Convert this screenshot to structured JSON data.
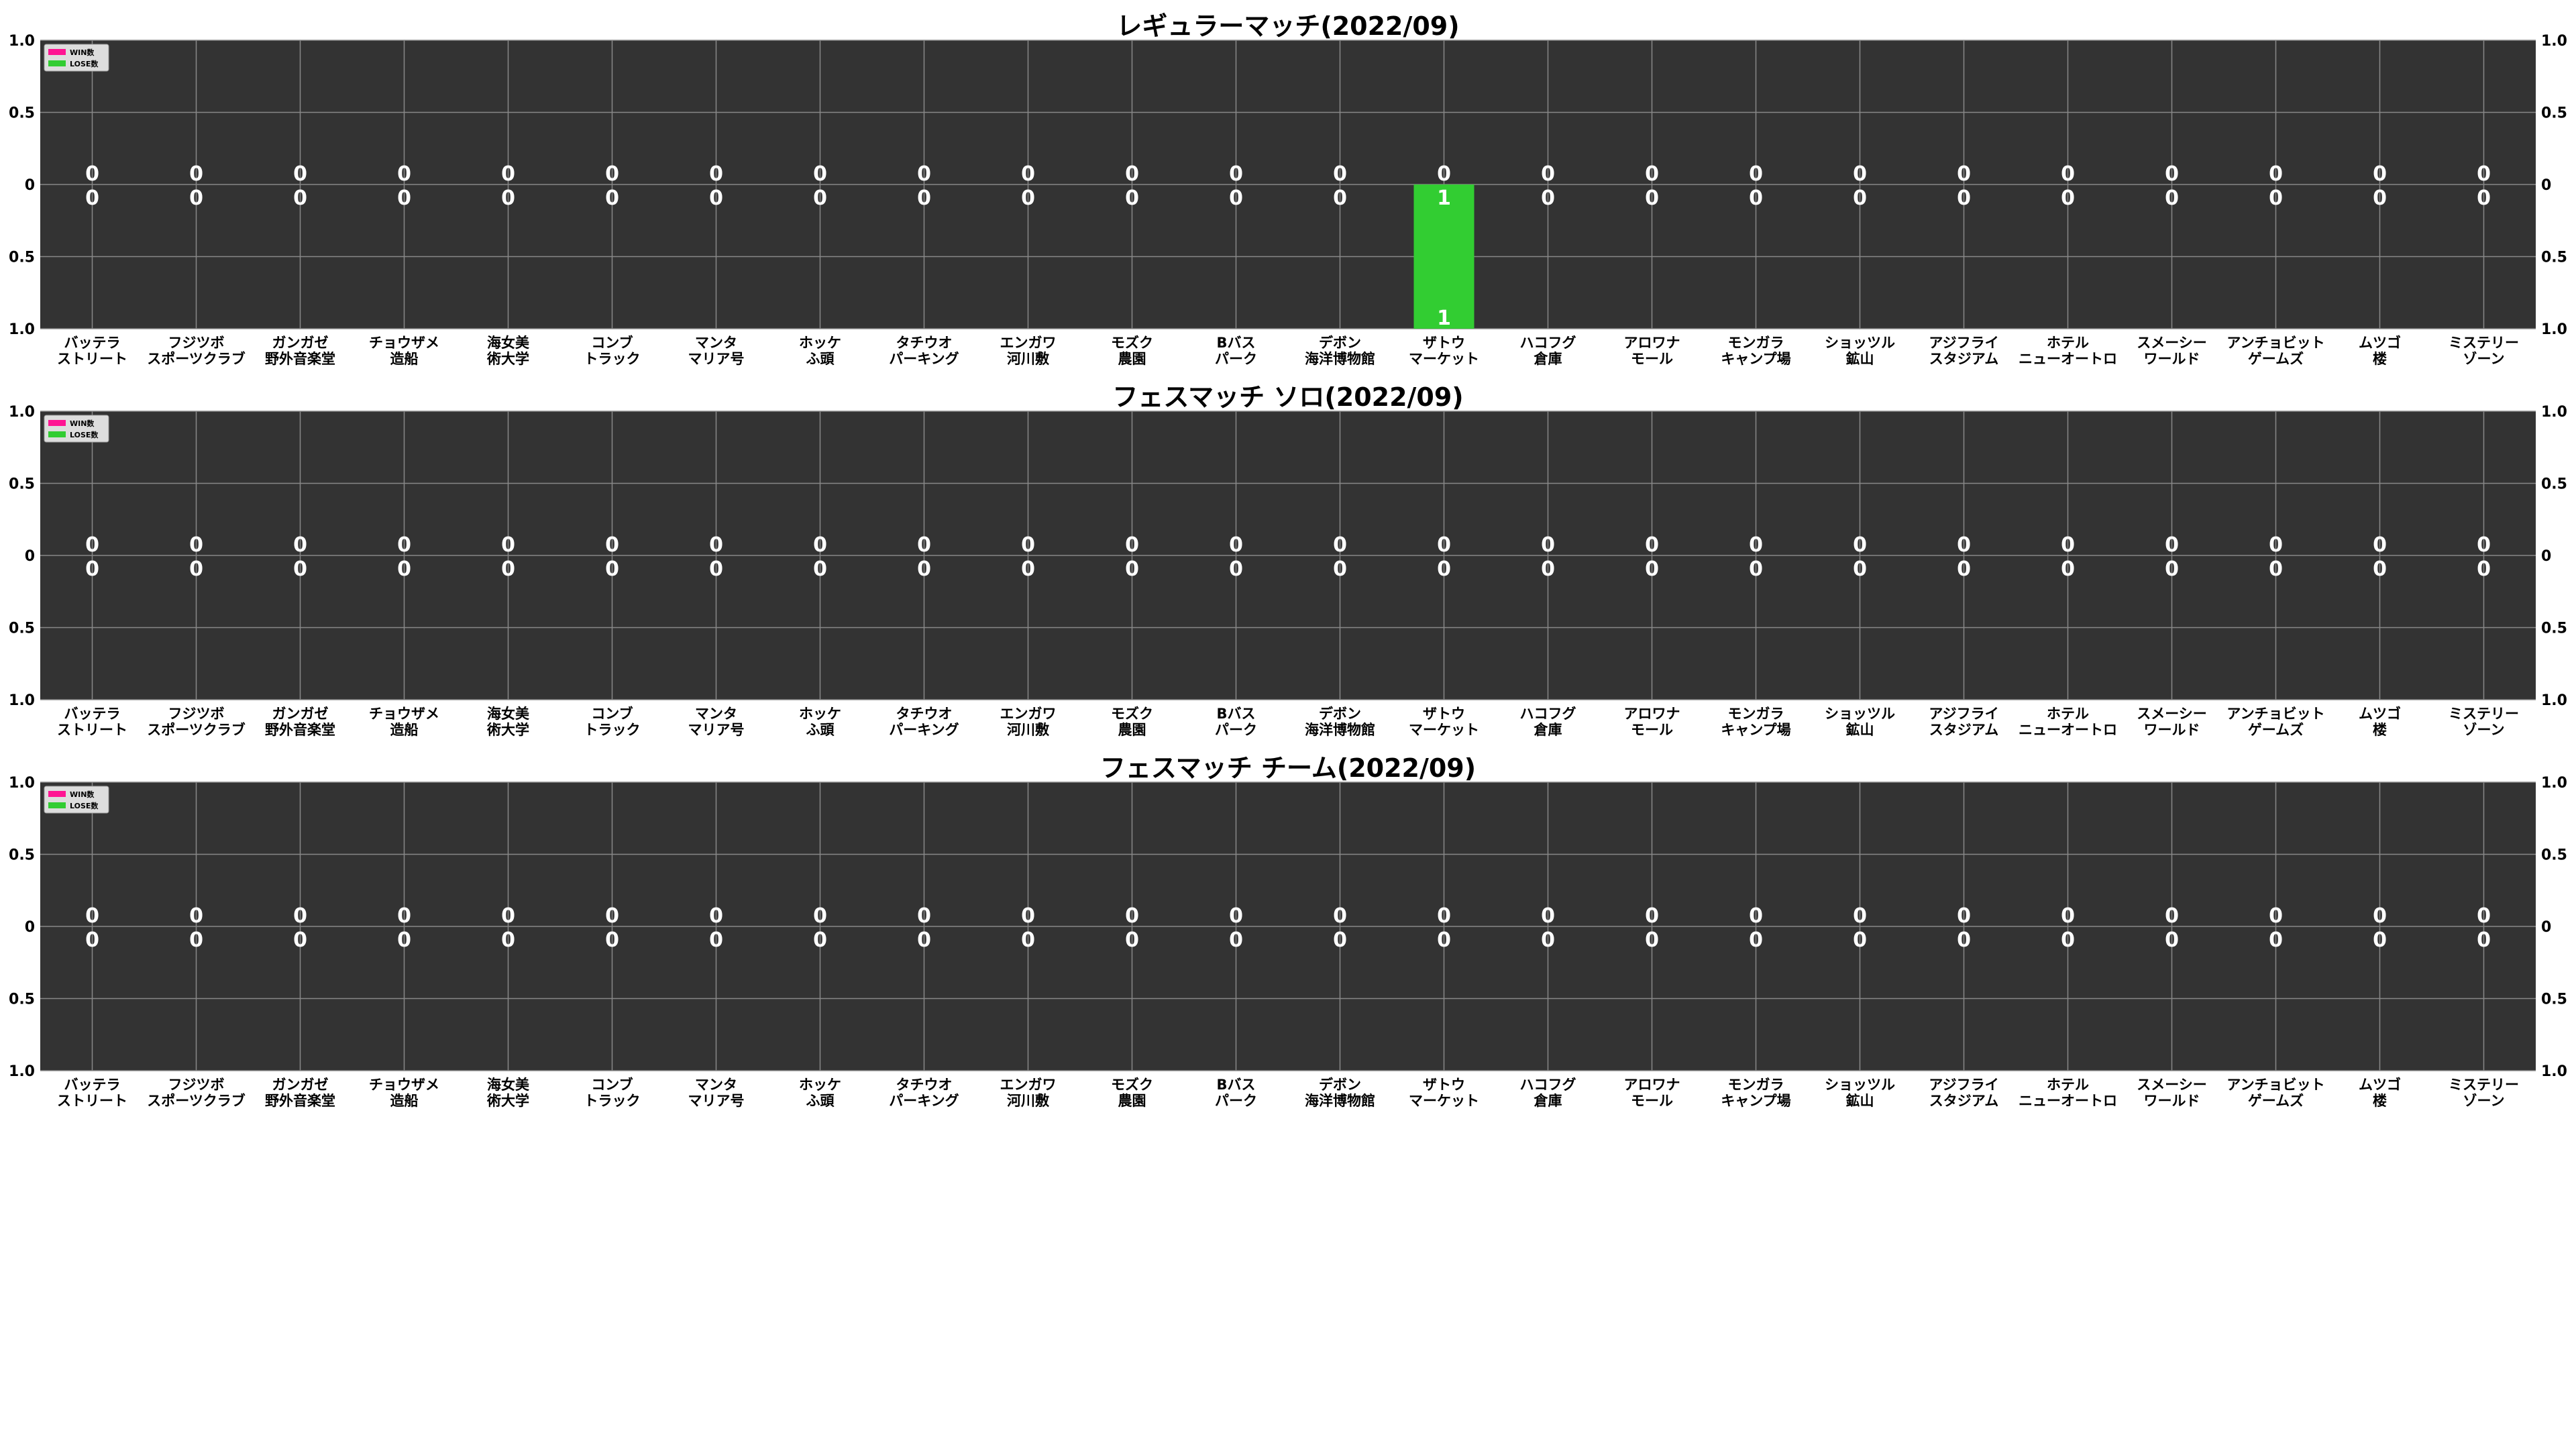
{
  "stages": [
    [
      "バッテラ",
      "ストリート"
    ],
    [
      "フジツボ",
      "スポーツクラブ"
    ],
    [
      "ガンガゼ",
      "野外音楽堂"
    ],
    [
      "チョウザメ",
      "造船"
    ],
    [
      "海女美",
      "術大学"
    ],
    [
      "コンブ",
      "トラック"
    ],
    [
      "マンタ",
      "マリア号"
    ],
    [
      "ホッケ",
      "ふ頭"
    ],
    [
      "タチウオ",
      "パーキング"
    ],
    [
      "エンガワ",
      "河川敷"
    ],
    [
      "モズク",
      "農園"
    ],
    [
      "Bバス",
      "パーク"
    ],
    [
      "デボン",
      "海洋博物館"
    ],
    [
      "ザトウ",
      "マーケット"
    ],
    [
      "ハコフグ",
      "倉庫"
    ],
    [
      "アロワナ",
      "モール"
    ],
    [
      "モンガラ",
      "キャンプ場"
    ],
    [
      "ショッツル",
      "鉱山"
    ],
    [
      "アジフライ",
      "スタジアム"
    ],
    [
      "ホテル",
      "ニューオートロ"
    ],
    [
      "スメーシー",
      "ワールド"
    ],
    [
      "アンチョビット",
      "ゲームズ"
    ],
    [
      "ムツゴ",
      "楼"
    ],
    [
      "ミステリー",
      "ゾーン"
    ]
  ],
  "colors": {
    "plot_bg": "#333333",
    "win": "#ff1493",
    "lose": "#32cd32",
    "grid": "#888888",
    "label": "#ffffff",
    "text": "#000000"
  },
  "legend": {
    "win": "WIN数",
    "lose": "LOSE数"
  },
  "chart_data": [
    {
      "type": "bar",
      "title": "レギュラーマッチ(2022/09)",
      "ylim": [
        -1.0,
        1.0
      ],
      "yticks": [
        "1.0",
        "0.5",
        "0",
        "0.5",
        "1.0"
      ],
      "series": [
        {
          "name": "WIN数",
          "values": [
            0,
            0,
            0,
            0,
            0,
            0,
            0,
            0,
            0,
            0,
            0,
            0,
            0,
            0,
            0,
            0,
            0,
            0,
            0,
            0,
            0,
            0,
            0,
            0
          ]
        },
        {
          "name": "LOSE数",
          "values": [
            0,
            0,
            0,
            0,
            0,
            0,
            0,
            0,
            0,
            0,
            0,
            0,
            0,
            1,
            0,
            0,
            0,
            0,
            0,
            0,
            0,
            0,
            0,
            0
          ]
        }
      ],
      "legend_position": "top-left",
      "grid": true
    },
    {
      "type": "bar",
      "title": "フェスマッチ ソロ(2022/09)",
      "ylim": [
        -1.0,
        1.0
      ],
      "yticks": [
        "1.0",
        "0.5",
        "0",
        "0.5",
        "1.0"
      ],
      "series": [
        {
          "name": "WIN数",
          "values": [
            0,
            0,
            0,
            0,
            0,
            0,
            0,
            0,
            0,
            0,
            0,
            0,
            0,
            0,
            0,
            0,
            0,
            0,
            0,
            0,
            0,
            0,
            0,
            0
          ]
        },
        {
          "name": "LOSE数",
          "values": [
            0,
            0,
            0,
            0,
            0,
            0,
            0,
            0,
            0,
            0,
            0,
            0,
            0,
            0,
            0,
            0,
            0,
            0,
            0,
            0,
            0,
            0,
            0,
            0
          ]
        }
      ],
      "legend_position": "top-left",
      "grid": true
    },
    {
      "type": "bar",
      "title": "フェスマッチ チーム(2022/09)",
      "ylim": [
        -1.0,
        1.0
      ],
      "yticks": [
        "1.0",
        "0.5",
        "0",
        "0.5",
        "1.0"
      ],
      "series": [
        {
          "name": "WIN数",
          "values": [
            0,
            0,
            0,
            0,
            0,
            0,
            0,
            0,
            0,
            0,
            0,
            0,
            0,
            0,
            0,
            0,
            0,
            0,
            0,
            0,
            0,
            0,
            0,
            0
          ]
        },
        {
          "name": "LOSE数",
          "values": [
            0,
            0,
            0,
            0,
            0,
            0,
            0,
            0,
            0,
            0,
            0,
            0,
            0,
            0,
            0,
            0,
            0,
            0,
            0,
            0,
            0,
            0,
            0,
            0
          ]
        }
      ],
      "legend_position": "top-left",
      "grid": true
    }
  ]
}
